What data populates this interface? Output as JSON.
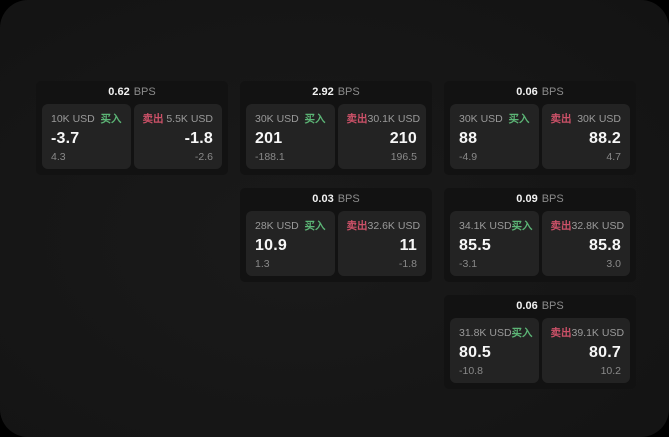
{
  "labels": {
    "buy": "买入",
    "sell": "卖出",
    "bps_suffix": "BPS"
  },
  "colors": {
    "buy_green": "#5cb576",
    "sell_red": "#cc5168",
    "card_bg": "#121212",
    "panel_bg": "#232323",
    "surface_bg": "#161616"
  },
  "cards": [
    {
      "bps": "0.62",
      "buy": {
        "size": "10K USD",
        "value": "-3.7",
        "sub": "4.3"
      },
      "sell": {
        "size": "5.5K USD",
        "value": "-1.8",
        "sub": "-2.6"
      }
    },
    {
      "bps": "2.92",
      "buy": {
        "size": "30K USD",
        "value": "201",
        "sub": "-188.1"
      },
      "sell": {
        "size": "30.1K USD",
        "value": "210",
        "sub": "196.5"
      }
    },
    {
      "bps": "0.06",
      "buy": {
        "size": "30K USD",
        "value": "88",
        "sub": "-4.9"
      },
      "sell": {
        "size": "30K USD",
        "value": "88.2",
        "sub": "4.7"
      }
    },
    {
      "bps": "0.03",
      "buy": {
        "size": "28K USD",
        "value": "10.9",
        "sub": "1.3"
      },
      "sell": {
        "size": "32.6K USD",
        "value": "11",
        "sub": "-1.8"
      }
    },
    {
      "bps": "0.09",
      "buy": {
        "size": "34.1K USD",
        "value": "85.5",
        "sub": "-3.1"
      },
      "sell": {
        "size": "32.8K USD",
        "value": "85.8",
        "sub": "3.0"
      }
    },
    {
      "bps": "0.06",
      "buy": {
        "size": "31.8K USD",
        "value": "80.5",
        "sub": "-10.8"
      },
      "sell": {
        "size": "39.1K USD",
        "value": "80.7",
        "sub": "10.2"
      }
    }
  ]
}
